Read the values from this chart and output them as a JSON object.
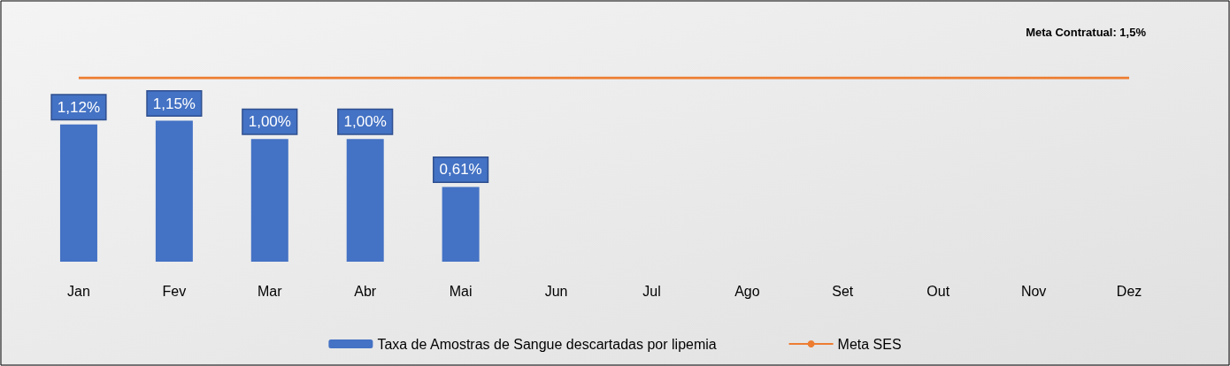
{
  "chart_data": {
    "type": "bar",
    "categories": [
      "Jan",
      "Fev",
      "Mar",
      "Abr",
      "Mai",
      "Jun",
      "Jul",
      "Ago",
      "Set",
      "Out",
      "Nov",
      "Dez"
    ],
    "series": [
      {
        "name": "Taxa de Amostras de Sangue descartadas por lipemia",
        "color": "#4472c4",
        "values": [
          1.12,
          1.15,
          1.0,
          1.0,
          0.61,
          null,
          null,
          null,
          null,
          null,
          null,
          null
        ],
        "value_labels": [
          "1,12%",
          "1,15%",
          "1,00%",
          "1,00%",
          "0,61%",
          null,
          null,
          null,
          null,
          null,
          null,
          null
        ]
      },
      {
        "name": "Meta SES",
        "type": "line",
        "color": "#ed7d31",
        "values": [
          1.5,
          1.5,
          1.5,
          1.5,
          1.5,
          1.5,
          1.5,
          1.5,
          1.5,
          1.5,
          1.5,
          1.5
        ],
        "marker": "none",
        "line_style": "solid"
      }
    ],
    "tick_labels": "x",
    "grid": false,
    "legend": "bottom",
    "annotations": [
      "Meta Contratual: 1,5%"
    ]
  }
}
